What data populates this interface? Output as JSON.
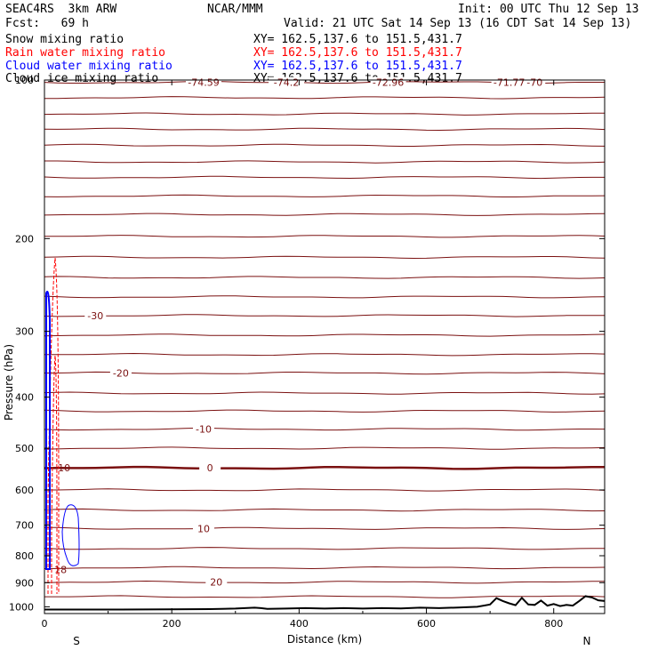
{
  "header": {
    "title_left": "SEAC4RS  3km ARW",
    "fcst": "Fcst:   69 h",
    "center": "NCAR/MMM",
    "init": "Init: 00 UTC Thu 12 Sep 13",
    "valid": "Valid: 21 UTC Sat 14 Sep 13 (16 CDT Sat 14 Sep 13)"
  },
  "legend": [
    {
      "label": "Snow mixing ratio",
      "xy": "XY= 162.5,137.6 to 151.5,431.7",
      "color": "#000000"
    },
    {
      "label": "Rain water mixing ratio",
      "xy": "XY= 162.5,137.6 to 151.5,431.7",
      "color": "#ff0000"
    },
    {
      "label": "Cloud water mixing ratio",
      "xy": "XY= 162.5,137.6 to 151.5,431.7",
      "color": "#0000ff"
    },
    {
      "label": "Cloud ice mixing ratio",
      "xy": "XY= 162.5,137.6 to 151.5,431.7",
      "color": "#000000"
    }
  ],
  "colors": {
    "temperature": "#7a1010",
    "terrain": "#000000",
    "rain": "#ff0000",
    "cloud": "#0000ff"
  },
  "chart_data": {
    "type": "line",
    "xlabel": "Distance (km)",
    "ylabel": "Pressure (hPa)",
    "xlim": [
      0,
      880
    ],
    "ylim": [
      1030,
      100
    ],
    "y_scale": "log",
    "x_ticks": [
      0,
      200,
      400,
      600,
      800
    ],
    "y_ticks": [
      200,
      300,
      400,
      500,
      600,
      700,
      800,
      900,
      1000
    ],
    "top_tick_label": "100",
    "orientation_labels": {
      "left": "S",
      "right": "N"
    },
    "isotherms": [
      {
        "p": 101,
        "label": "-70",
        "label_x": 770
      },
      {
        "p": 108
      },
      {
        "p": 116
      },
      {
        "p": 124
      },
      {
        "p": 133
      },
      {
        "p": 143
      },
      {
        "p": 153
      },
      {
        "p": 166
      },
      {
        "p": 180
      },
      {
        "p": 198
      },
      {
        "p": 217
      },
      {
        "p": 237
      },
      {
        "p": 258
      },
      {
        "p": 280,
        "label": "-30",
        "label_x": 80
      },
      {
        "p": 305
      },
      {
        "p": 332
      },
      {
        "p": 360,
        "label": "-20",
        "label_x": 120
      },
      {
        "p": 393
      },
      {
        "p": 425
      },
      {
        "p": 460,
        "label": "-10",
        "label_x": 250
      },
      {
        "p": 500
      },
      {
        "p": 545,
        "label": "0",
        "label_x": 260,
        "bold": true
      },
      {
        "p": 600
      },
      {
        "p": 655
      },
      {
        "p": 710,
        "label": "10",
        "label_x": 250
      },
      {
        "p": 775
      },
      {
        "p": 843
      },
      {
        "p": 898,
        "label": "20",
        "label_x": 270
      },
      {
        "p": 957
      }
    ],
    "top_values": [
      {
        "x": 250,
        "label": "-74.59"
      },
      {
        "x": 380,
        "label": "-74.2"
      },
      {
        "x": 540,
        "label": "-72.96"
      },
      {
        "x": 730,
        "label": "-71.77"
      }
    ],
    "terrain": {
      "x": [
        0,
        120,
        200,
        260,
        300,
        330,
        340,
        350,
        380,
        410,
        440,
        470,
        500,
        530,
        560,
        590,
        620,
        650,
        680,
        700,
        710,
        720,
        730,
        740,
        750,
        760,
        770,
        780,
        790,
        800,
        810,
        820,
        830,
        840,
        850,
        860,
        870,
        880
      ],
      "p": [
        1012,
        1012,
        1011,
        1010,
        1008,
        1004,
        1006,
        1009,
        1008,
        1006,
        1008,
        1006,
        1008,
        1006,
        1007,
        1004,
        1006,
        1003,
        1000,
        990,
        963,
        975,
        985,
        993,
        962,
        990,
        992,
        973,
        995,
        988,
        997,
        992,
        995,
        975,
        955,
        960,
        972,
        975
      ]
    },
    "annotations": [
      {
        "x": 10,
        "p": 545,
        "text": "-10"
      },
      {
        "x": 10,
        "p": 850,
        "text": "18"
      }
    ]
  }
}
